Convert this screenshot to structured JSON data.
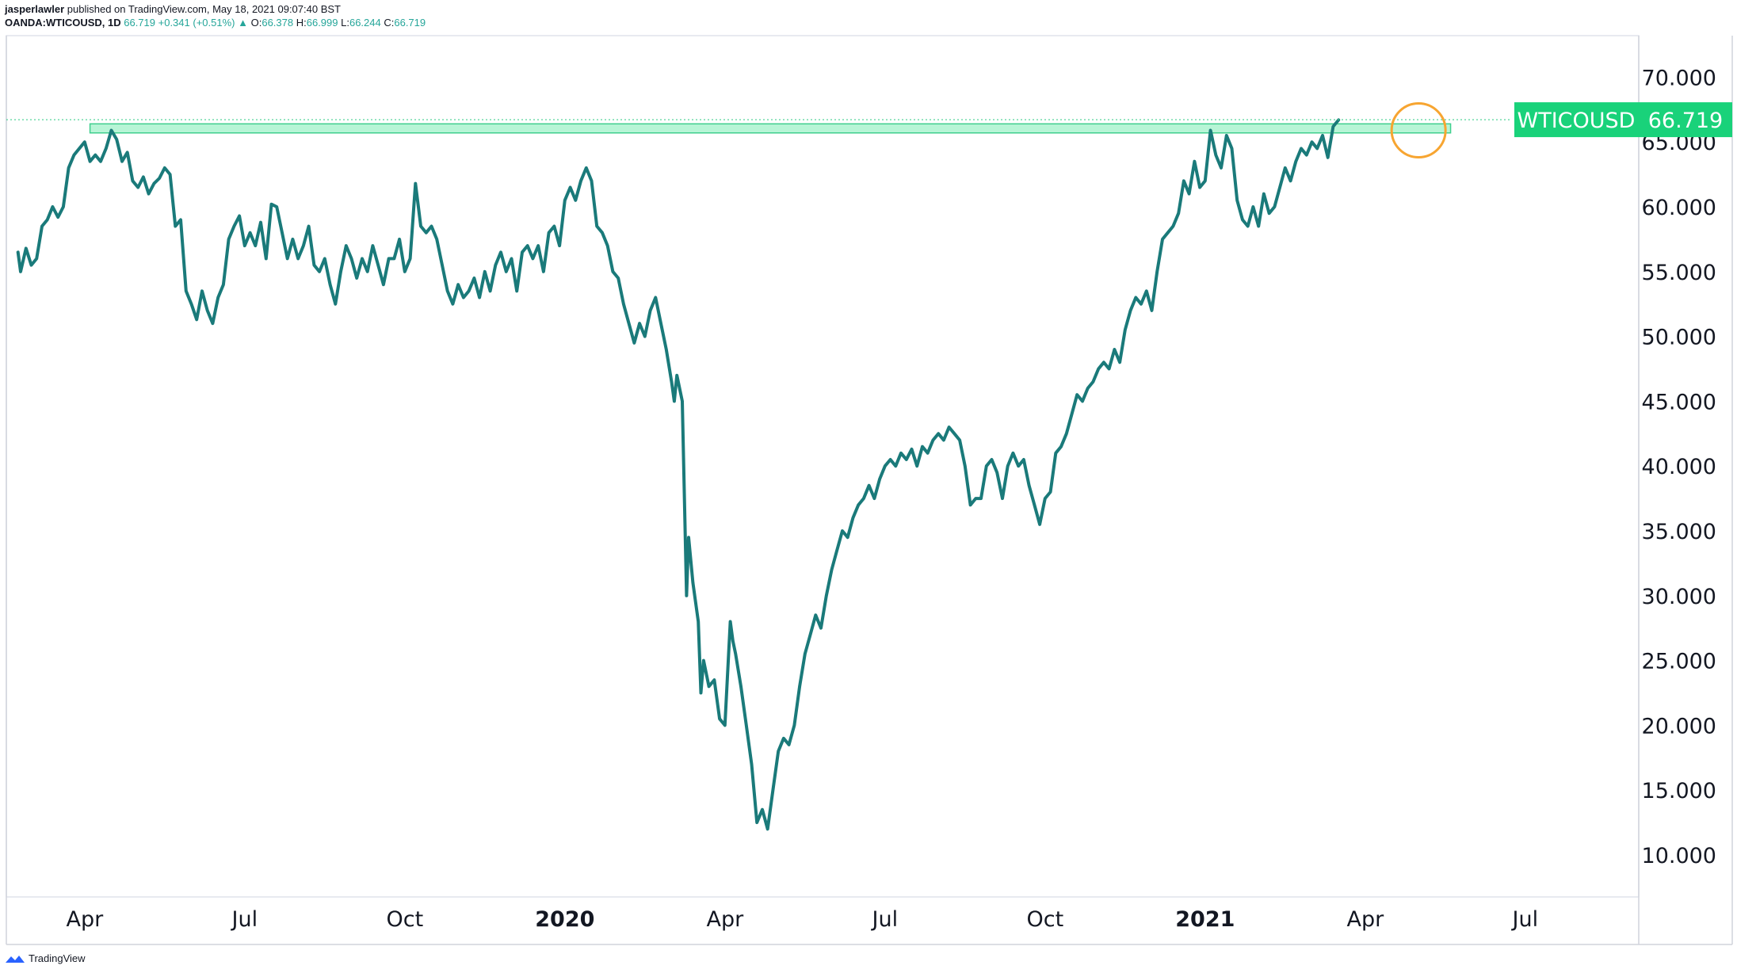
{
  "header": {
    "author": "jasperlawler",
    "published_text": "published on TradingView.com, May 18, 2021 09:07:40 BST",
    "symbol": "OANDA:WTICOUSD, 1D",
    "last": "66.719",
    "change": "+0.341 (+0.51%)",
    "change_arrow": "▲",
    "o_label": "O:",
    "o_value": "66.378",
    "h_label": "H:",
    "h_value": "66.999",
    "l_label": "L:",
    "l_value": "66.244",
    "c_label": "C:",
    "c_value": "66.719"
  },
  "footer": {
    "brand": "TradingView",
    "logo_icon": "tradingview-logo-icon"
  },
  "colors": {
    "line": "#1a7a7a",
    "zone_fill": "#b7f5d6",
    "zone_stroke": "#3fcf8e",
    "tag_bg": "#19d27a",
    "circle": "#f7a531",
    "dotted": "#3fcf8e"
  },
  "chart_data": {
    "type": "line",
    "x_ticks": [
      {
        "label": "Apr",
        "x": 2.0,
        "bold": false
      },
      {
        "label": "Jul",
        "x": 5.0,
        "bold": false
      },
      {
        "label": "Oct",
        "x": 8.0,
        "bold": false
      },
      {
        "label": "2020",
        "x": 11.0,
        "bold": true
      },
      {
        "label": "Apr",
        "x": 14.0,
        "bold": false
      },
      {
        "label": "Jul",
        "x": 17.0,
        "bold": false
      },
      {
        "label": "Oct",
        "x": 20.0,
        "bold": false
      },
      {
        "label": "2021",
        "x": 23.0,
        "bold": true
      },
      {
        "label": "Apr",
        "x": 26.0,
        "bold": false
      },
      {
        "label": "Jul",
        "x": 29.0,
        "bold": false
      }
    ],
    "y_ticks": [
      "70.000",
      "65.000",
      "60.000",
      "55.000",
      "50.000",
      "45.000",
      "40.000",
      "35.000",
      "30.000",
      "25.000",
      "20.000",
      "15.000",
      "10.000"
    ],
    "ylim": [
      5.0,
      73.5
    ],
    "xlim": [
      0.75,
      31.4
    ],
    "resistance_zone": {
      "from": 65.7,
      "to": 66.4,
      "x_start": 2.1,
      "x_end": 27.6
    },
    "last_price_tag": {
      "symbol": "WTICOUSD",
      "value": "66.719",
      "price": 66.719
    },
    "highlight_circle": {
      "x": 27.0,
      "y": 65.9
    },
    "series": [
      {
        "points": [
          [
            0.75,
            56.5
          ],
          [
            0.8,
            55.0
          ],
          [
            0.9,
            56.8
          ],
          [
            1.0,
            55.5
          ],
          [
            1.1,
            56.0
          ],
          [
            1.2,
            58.5
          ],
          [
            1.3,
            59.0
          ],
          [
            1.4,
            60.0
          ],
          [
            1.5,
            59.2
          ],
          [
            1.6,
            60.0
          ],
          [
            1.7,
            63.0
          ],
          [
            1.8,
            64.0
          ],
          [
            1.9,
            64.5
          ],
          [
            2.0,
            65.0
          ],
          [
            2.1,
            63.5
          ],
          [
            2.2,
            64.0
          ],
          [
            2.3,
            63.5
          ],
          [
            2.4,
            64.5
          ],
          [
            2.5,
            65.9
          ],
          [
            2.6,
            65.2
          ],
          [
            2.7,
            63.5
          ],
          [
            2.8,
            64.2
          ],
          [
            2.9,
            62.0
          ],
          [
            3.0,
            61.5
          ],
          [
            3.1,
            62.3
          ],
          [
            3.2,
            61.0
          ],
          [
            3.3,
            61.8
          ],
          [
            3.4,
            62.2
          ],
          [
            3.5,
            63.0
          ],
          [
            3.6,
            62.5
          ],
          [
            3.7,
            58.5
          ],
          [
            3.8,
            59.0
          ],
          [
            3.9,
            53.5
          ],
          [
            4.0,
            52.5
          ],
          [
            4.1,
            51.3
          ],
          [
            4.2,
            53.5
          ],
          [
            4.3,
            52.0
          ],
          [
            4.4,
            51.0
          ],
          [
            4.5,
            53.0
          ],
          [
            4.6,
            54.0
          ],
          [
            4.7,
            57.5
          ],
          [
            4.8,
            58.5
          ],
          [
            4.9,
            59.3
          ],
          [
            5.0,
            57.0
          ],
          [
            5.1,
            58.0
          ],
          [
            5.2,
            57.0
          ],
          [
            5.3,
            58.8
          ],
          [
            5.4,
            56.0
          ],
          [
            5.5,
            60.2
          ],
          [
            5.6,
            60.0
          ],
          [
            5.7,
            58.0
          ],
          [
            5.8,
            56.0
          ],
          [
            5.9,
            57.5
          ],
          [
            6.0,
            56.0
          ],
          [
            6.1,
            57.0
          ],
          [
            6.2,
            58.5
          ],
          [
            6.3,
            55.5
          ],
          [
            6.4,
            55.0
          ],
          [
            6.5,
            56.0
          ],
          [
            6.6,
            54.0
          ],
          [
            6.7,
            52.5
          ],
          [
            6.8,
            55.0
          ],
          [
            6.9,
            57.0
          ],
          [
            7.0,
            56.0
          ],
          [
            7.1,
            54.5
          ],
          [
            7.2,
            56.0
          ],
          [
            7.3,
            55.0
          ],
          [
            7.4,
            57.0
          ],
          [
            7.5,
            55.5
          ],
          [
            7.6,
            54.0
          ],
          [
            7.7,
            56.0
          ],
          [
            7.8,
            56.0
          ],
          [
            7.9,
            57.5
          ],
          [
            8.0,
            55.0
          ],
          [
            8.1,
            56.0
          ],
          [
            8.2,
            61.8
          ],
          [
            8.3,
            58.5
          ],
          [
            8.4,
            58.0
          ],
          [
            8.5,
            58.5
          ],
          [
            8.6,
            57.5
          ],
          [
            8.7,
            55.5
          ],
          [
            8.8,
            53.5
          ],
          [
            8.9,
            52.5
          ],
          [
            9.0,
            54.0
          ],
          [
            9.1,
            53.0
          ],
          [
            9.2,
            53.5
          ],
          [
            9.3,
            54.5
          ],
          [
            9.4,
            53.0
          ],
          [
            9.5,
            55.0
          ],
          [
            9.6,
            53.5
          ],
          [
            9.7,
            55.5
          ],
          [
            9.8,
            56.5
          ],
          [
            9.9,
            55.0
          ],
          [
            10.0,
            56.0
          ],
          [
            10.1,
            53.5
          ],
          [
            10.2,
            56.5
          ],
          [
            10.3,
            57.0
          ],
          [
            10.4,
            56.0
          ],
          [
            10.5,
            57.0
          ],
          [
            10.6,
            55.0
          ],
          [
            10.7,
            58.0
          ],
          [
            10.8,
            58.5
          ],
          [
            10.9,
            57.0
          ],
          [
            11.0,
            60.5
          ],
          [
            11.1,
            61.5
          ],
          [
            11.2,
            60.5
          ],
          [
            11.3,
            62.0
          ],
          [
            11.4,
            63.0
          ],
          [
            11.5,
            62.0
          ],
          [
            11.6,
            58.5
          ],
          [
            11.7,
            58.0
          ],
          [
            11.8,
            57.0
          ],
          [
            11.9,
            55.0
          ],
          [
            12.0,
            54.5
          ],
          [
            12.1,
            52.5
          ],
          [
            12.2,
            51.0
          ],
          [
            12.3,
            49.5
          ],
          [
            12.4,
            51.0
          ],
          [
            12.5,
            50.0
          ],
          [
            12.6,
            52.0
          ],
          [
            12.7,
            53.0
          ],
          [
            12.8,
            51.0
          ],
          [
            12.9,
            49.0
          ],
          [
            13.0,
            46.5
          ],
          [
            13.05,
            45.0
          ],
          [
            13.1,
            47.0
          ],
          [
            13.2,
            45.0
          ],
          [
            13.28,
            30.0
          ],
          [
            13.32,
            34.5
          ],
          [
            13.4,
            31.0
          ],
          [
            13.5,
            28.0
          ],
          [
            13.55,
            22.5
          ],
          [
            13.6,
            25.0
          ],
          [
            13.7,
            23.0
          ],
          [
            13.8,
            23.5
          ],
          [
            13.9,
            20.5
          ],
          [
            14.0,
            20.0
          ],
          [
            14.1,
            28.0
          ],
          [
            14.15,
            26.5
          ],
          [
            14.2,
            25.5
          ],
          [
            14.3,
            23.0
          ],
          [
            14.4,
            20.0
          ],
          [
            14.5,
            17.0
          ],
          [
            14.6,
            12.5
          ],
          [
            14.7,
            13.5
          ],
          [
            14.8,
            12.0
          ],
          [
            14.9,
            15.0
          ],
          [
            15.0,
            18.0
          ],
          [
            15.1,
            19.0
          ],
          [
            15.2,
            18.5
          ],
          [
            15.3,
            20.0
          ],
          [
            15.4,
            23.0
          ],
          [
            15.5,
            25.5
          ],
          [
            15.6,
            27.0
          ],
          [
            15.7,
            28.5
          ],
          [
            15.8,
            27.5
          ],
          [
            15.9,
            30.0
          ],
          [
            16.0,
            32.0
          ],
          [
            16.1,
            33.5
          ],
          [
            16.2,
            35.0
          ],
          [
            16.3,
            34.5
          ],
          [
            16.4,
            36.0
          ],
          [
            16.5,
            37.0
          ],
          [
            16.6,
            37.5
          ],
          [
            16.7,
            38.5
          ],
          [
            16.8,
            37.5
          ],
          [
            16.9,
            39.0
          ],
          [
            17.0,
            40.0
          ],
          [
            17.1,
            40.5
          ],
          [
            17.2,
            40.0
          ],
          [
            17.3,
            41.0
          ],
          [
            17.4,
            40.5
          ],
          [
            17.5,
            41.3
          ],
          [
            17.6,
            40.0
          ],
          [
            17.7,
            41.5
          ],
          [
            17.8,
            41.0
          ],
          [
            17.9,
            42.0
          ],
          [
            18.0,
            42.5
          ],
          [
            18.1,
            42.0
          ],
          [
            18.2,
            43.0
          ],
          [
            18.3,
            42.5
          ],
          [
            18.4,
            42.0
          ],
          [
            18.5,
            40.0
          ],
          [
            18.6,
            37.0
          ],
          [
            18.7,
            37.5
          ],
          [
            18.8,
            37.5
          ],
          [
            18.9,
            40.0
          ],
          [
            19.0,
            40.5
          ],
          [
            19.1,
            39.5
          ],
          [
            19.2,
            37.5
          ],
          [
            19.3,
            40.0
          ],
          [
            19.4,
            41.0
          ],
          [
            19.5,
            40.0
          ],
          [
            19.6,
            40.5
          ],
          [
            19.7,
            38.5
          ],
          [
            19.8,
            37.0
          ],
          [
            19.9,
            35.5
          ],
          [
            20.0,
            37.5
          ],
          [
            20.1,
            38.0
          ],
          [
            20.2,
            41.0
          ],
          [
            20.3,
            41.5
          ],
          [
            20.4,
            42.5
          ],
          [
            20.5,
            44.0
          ],
          [
            20.6,
            45.5
          ],
          [
            20.7,
            45.0
          ],
          [
            20.8,
            46.0
          ],
          [
            20.9,
            46.5
          ],
          [
            21.0,
            47.5
          ],
          [
            21.1,
            48.0
          ],
          [
            21.2,
            47.5
          ],
          [
            21.3,
            49.0
          ],
          [
            21.4,
            48.0
          ],
          [
            21.5,
            50.5
          ],
          [
            21.6,
            52.0
          ],
          [
            21.7,
            53.0
          ],
          [
            21.8,
            52.5
          ],
          [
            21.9,
            53.5
          ],
          [
            22.0,
            52.0
          ],
          [
            22.1,
            55.0
          ],
          [
            22.2,
            57.5
          ],
          [
            22.3,
            58.0
          ],
          [
            22.4,
            58.5
          ],
          [
            22.5,
            59.5
          ],
          [
            22.6,
            62.0
          ],
          [
            22.7,
            61.0
          ],
          [
            22.8,
            63.5
          ],
          [
            22.9,
            61.5
          ],
          [
            23.0,
            62.0
          ],
          [
            23.1,
            65.9
          ],
          [
            23.2,
            64.0
          ],
          [
            23.3,
            63.0
          ],
          [
            23.4,
            65.5
          ],
          [
            23.5,
            64.5
          ],
          [
            23.6,
            60.5
          ],
          [
            23.7,
            59.0
          ],
          [
            23.8,
            58.5
          ],
          [
            23.9,
            60.0
          ],
          [
            24.0,
            58.5
          ],
          [
            24.1,
            61.0
          ],
          [
            24.2,
            59.5
          ],
          [
            24.3,
            60.0
          ],
          [
            24.4,
            61.5
          ],
          [
            24.5,
            63.0
          ],
          [
            24.6,
            62.0
          ],
          [
            24.7,
            63.5
          ],
          [
            24.8,
            64.5
          ],
          [
            24.9,
            64.0
          ],
          [
            25.0,
            65.0
          ],
          [
            25.1,
            64.5
          ],
          [
            25.2,
            65.5
          ],
          [
            25.3,
            63.8
          ],
          [
            25.4,
            66.2
          ],
          [
            25.5,
            66.7
          ]
        ]
      }
    ]
  }
}
